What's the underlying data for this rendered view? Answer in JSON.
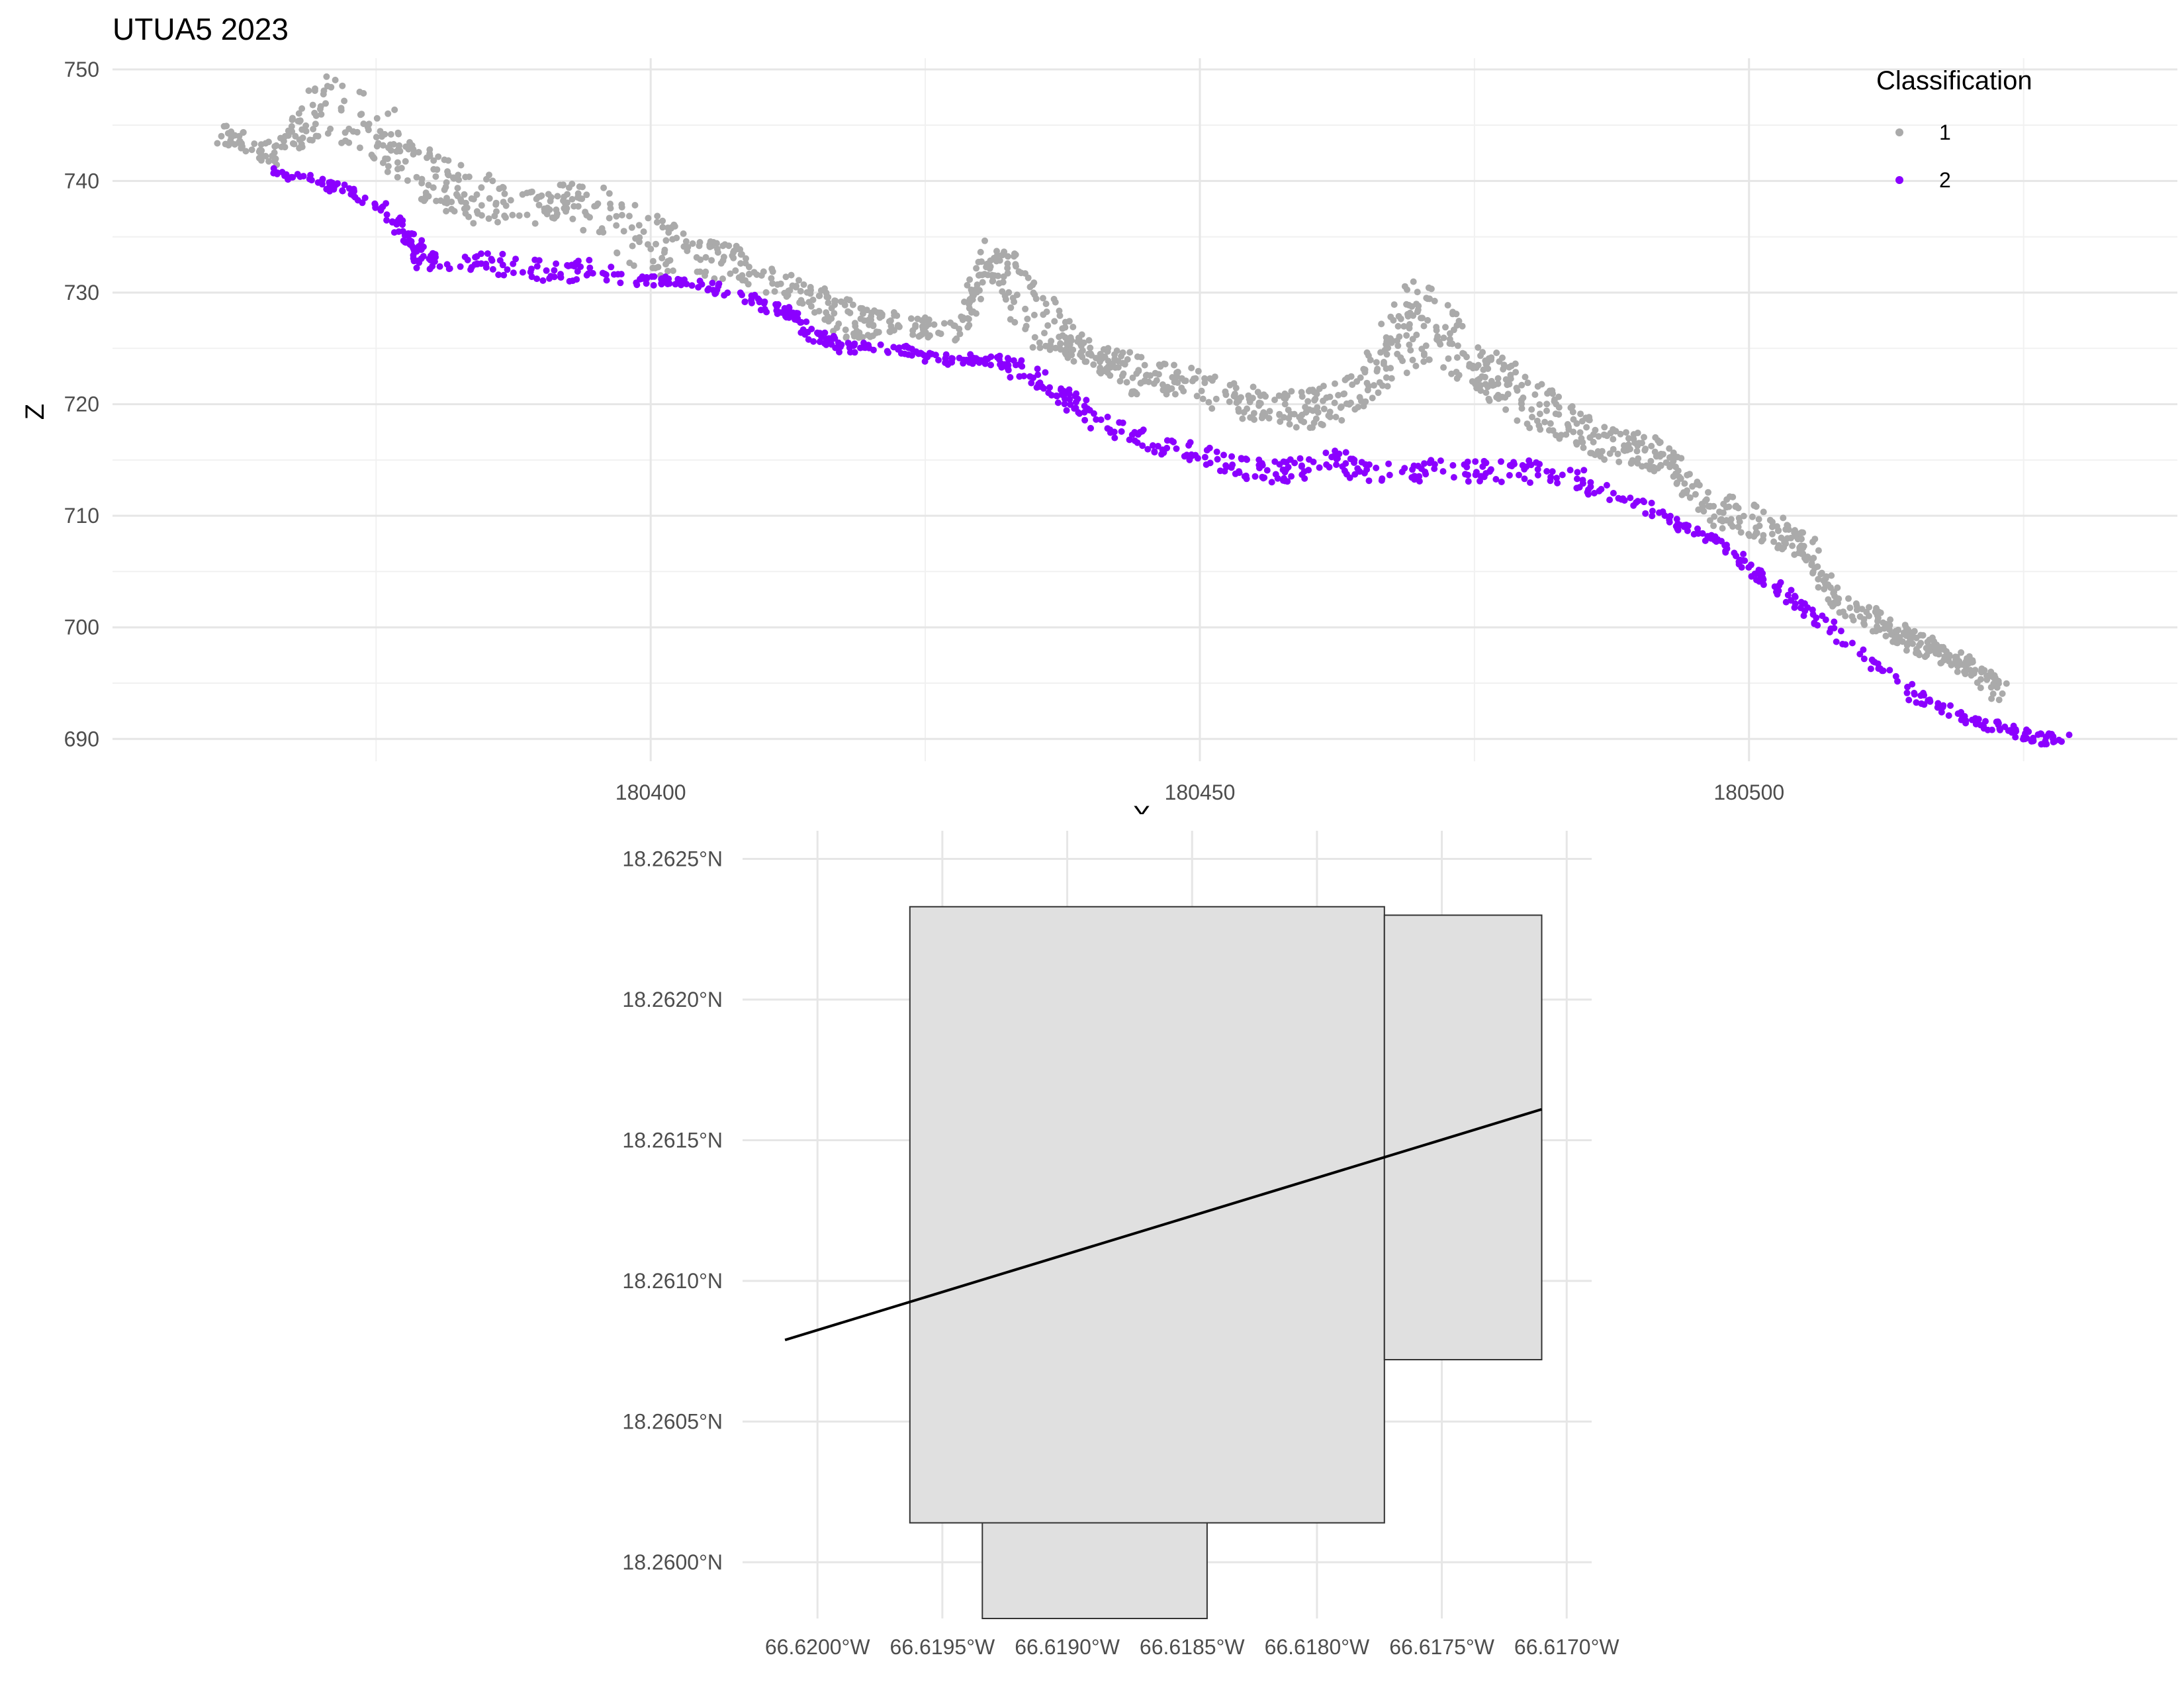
{
  "chart_data": [
    {
      "type": "scatter",
      "title": "UTUA5 2023",
      "xlabel": "X",
      "ylabel": "Z",
      "xlim": [
        180351,
        180539
      ],
      "ylim": [
        688,
        751
      ],
      "x_ticks": [
        "180400",
        "180450",
        "180500"
      ],
      "y_ticks": [
        "690",
        "700",
        "710",
        "720",
        "730",
        "740",
        "750"
      ],
      "grid": true,
      "legend": {
        "title": "Classification",
        "position": "top-right"
      },
      "colors": {
        "1": "#aaaaaa",
        "2": "#8b00ff"
      },
      "series": [
        {
          "name": "1",
          "color": "#aaaaaa",
          "shape": [
            [
              180361,
              744
            ],
            [
              180366,
              742
            ],
            [
              180370,
              746
            ],
            [
              180375,
              744
            ],
            [
              180379,
              740
            ],
            [
              180383,
              738
            ],
            [
              180389,
              737
            ],
            [
              180393,
              738
            ],
            [
              180398,
              734
            ],
            [
              180403,
              733
            ],
            [
              180408,
              732
            ],
            [
              180413,
              730
            ],
            [
              180418,
              727
            ],
            [
              180422,
              727
            ],
            [
              180428,
              726
            ],
            [
              180431,
              733
            ],
            [
              180434,
              728
            ],
            [
              180437,
              726
            ],
            [
              180440,
              724
            ],
            [
              180444,
              722
            ],
            [
              180448,
              722
            ],
            [
              180453,
              720
            ],
            [
              180457,
              719
            ],
            [
              180461,
              719
            ],
            [
              180465,
              721
            ],
            [
              180468,
              725
            ],
            [
              180471,
              726
            ],
            [
              180475,
              723
            ],
            [
              180479,
              720
            ],
            [
              180483,
              718
            ],
            [
              180487,
              716
            ],
            [
              180492,
              715
            ],
            [
              180497,
              710
            ],
            [
              180501,
              709
            ],
            [
              180505,
              707
            ],
            [
              180508,
              702
            ],
            [
              180512,
              700
            ],
            [
              180516,
              698
            ],
            [
              180520,
              696
            ],
            [
              180523,
              694
            ]
          ],
          "thickness": [
            2,
            2,
            6,
            6,
            5,
            5,
            3,
            3,
            8,
            4,
            3,
            2,
            4,
            2,
            2,
            3,
            8,
            4,
            2,
            4,
            3,
            3,
            3,
            4,
            3,
            9,
            8,
            4,
            5,
            4,
            3,
            3,
            3,
            3,
            3,
            2,
            2,
            2,
            2,
            2
          ]
        },
        {
          "name": "2",
          "color": "#8b00ff",
          "shape": [
            [
              180365,
              741
            ],
            [
              180370,
              740
            ],
            [
              180375,
              738
            ],
            [
              180378,
              735
            ],
            [
              180379,
              733
            ],
            [
              180384,
              733
            ],
            [
              180389,
              732
            ],
            [
              180394,
              732
            ],
            [
              180399,
              731
            ],
            [
              180404,
              731
            ],
            [
              180410,
              729
            ],
            [
              180413,
              728
            ],
            [
              180415,
              726
            ],
            [
              180418,
              725
            ],
            [
              180422,
              725
            ],
            [
              180426,
              724
            ],
            [
              180431,
              724
            ],
            [
              180434,
              723
            ],
            [
              180437,
              721
            ],
            [
              180440,
              719
            ],
            [
              180444,
              717
            ],
            [
              180448,
              716
            ],
            [
              180452,
              715
            ],
            [
              180455,
              714
            ],
            [
              180458,
              714
            ],
            [
              180462,
              715
            ],
            [
              180465,
              714
            ],
            [
              180470,
              714
            ],
            [
              180475,
              714
            ],
            [
              180480,
              714
            ],
            [
              180485,
              713
            ],
            [
              180490,
              711
            ],
            [
              180494,
              709
            ],
            [
              180497,
              708
            ],
            [
              180499,
              706
            ],
            [
              180502,
              704
            ],
            [
              180506,
              701
            ],
            [
              180510,
              698
            ],
            [
              180515,
              694
            ],
            [
              180519,
              692
            ],
            [
              180523,
              691
            ],
            [
              180526,
              690
            ],
            [
              180529,
              690
            ]
          ],
          "thickness": [
            1,
            1,
            1,
            2,
            2,
            2,
            2,
            2,
            1,
            1,
            1,
            1,
            1,
            1,
            1,
            1,
            1,
            2,
            2,
            2,
            2,
            2,
            2,
            2,
            2,
            2,
            2,
            2,
            2,
            2,
            2,
            1,
            1,
            1,
            1,
            1,
            1,
            1,
            1,
            1,
            1,
            1,
            1
          ]
        }
      ]
    },
    {
      "type": "map",
      "xlim": [
        -66.6203,
        -66.6169
      ],
      "ylim": [
        18.2598,
        18.2626
      ],
      "x_ticks": [
        "66.6200°W",
        "66.6195°W",
        "66.6190°W",
        "66.6185°W",
        "66.6180°W",
        "66.6175°W",
        "66.6170°W"
      ],
      "x_tick_values": [
        -66.62,
        -66.6195,
        -66.619,
        -66.6185,
        -66.618,
        -66.6175,
        -66.617
      ],
      "y_ticks": [
        "18.2600°N",
        "18.2605°N",
        "18.2610°N",
        "18.2615°N",
        "18.2620°N",
        "18.2625°N"
      ],
      "y_tick_values": [
        18.26,
        18.2605,
        18.261,
        18.2615,
        18.262,
        18.2625
      ],
      "grid": true,
      "polygon_fill": "#e0e0e0",
      "polygons": [
        [
          [
            -66.61963,
            18.26014
          ],
          [
            -66.61773,
            18.26014
          ],
          [
            -66.61773,
            18.26233
          ],
          [
            -66.61963,
            18.26233
          ]
        ],
        [
          [
            -66.61773,
            18.26072
          ],
          [
            -66.6171,
            18.26072
          ],
          [
            -66.6171,
            18.2623
          ],
          [
            -66.61773,
            18.2623
          ]
        ],
        [
          [
            -66.61934,
            18.2598
          ],
          [
            -66.61844,
            18.2598
          ],
          [
            -66.61844,
            18.26014
          ],
          [
            -66.61934,
            18.26014
          ]
        ]
      ],
      "line": [
        [
          -66.62013,
          18.26079
        ],
        [
          -66.6171,
          18.26161
        ]
      ]
    }
  ]
}
